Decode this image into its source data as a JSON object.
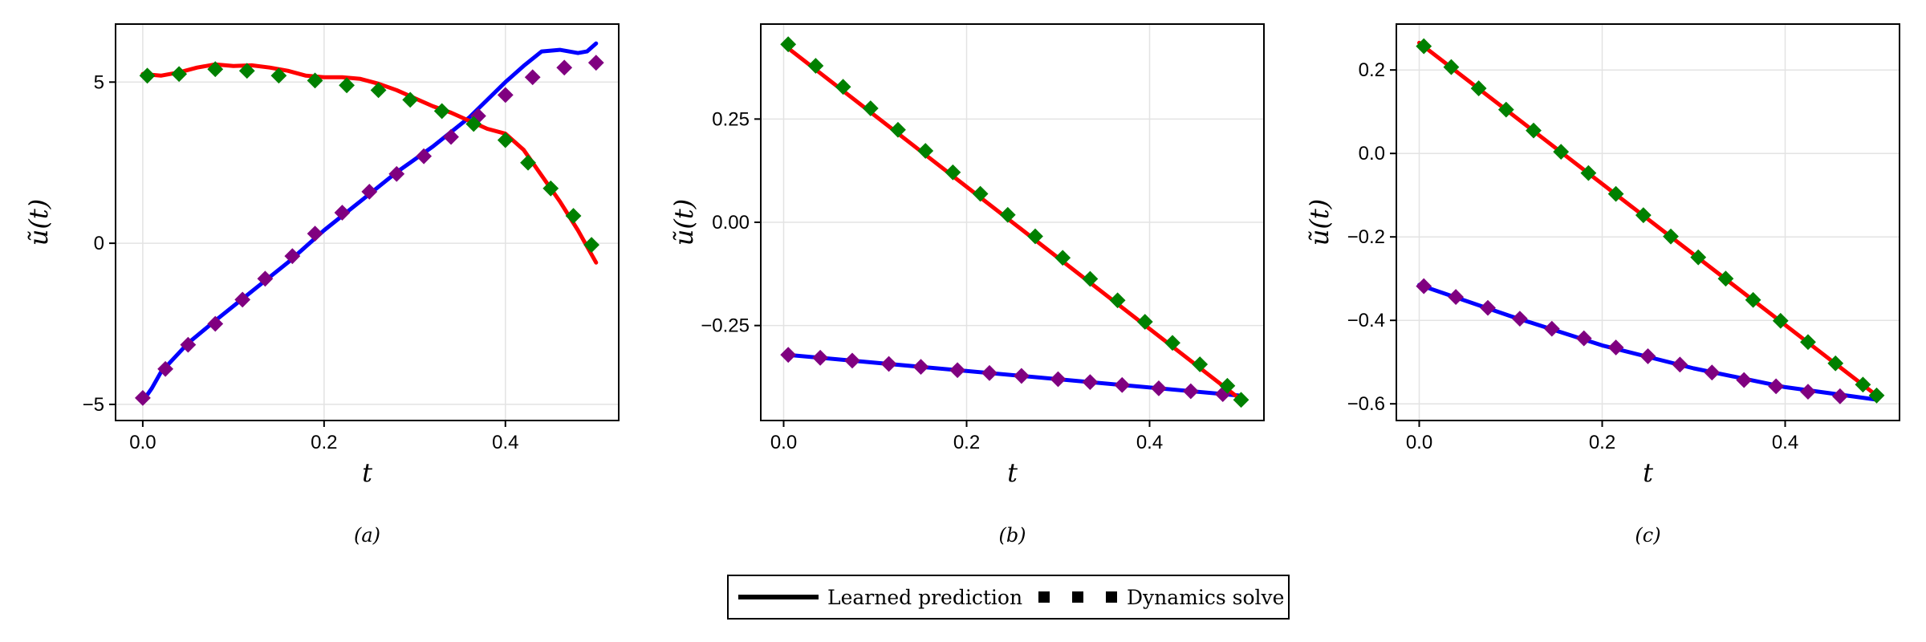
{
  "figure": {
    "legend": {
      "entries": [
        {
          "label": "Learned prediction",
          "style": "line"
        },
        {
          "label": "Dynamics solve",
          "style": "dots"
        }
      ],
      "placement": "bottom-center"
    }
  },
  "chart_data": [
    {
      "type": "line",
      "panel_label": "(a)",
      "xlabel": "t",
      "ylabel": "ũ(t)",
      "xlim": [
        -0.03,
        0.525
      ],
      "ylim": [
        -5.5,
        6.8
      ],
      "xticks": [
        0.0,
        0.2,
        0.4
      ],
      "xtick_labels": [
        "0.0",
        "0.2",
        "0.4"
      ],
      "yticks": [
        -5,
        0,
        5
      ],
      "ytick_labels": [
        "−5",
        "0",
        "5"
      ],
      "grid": true,
      "series": [
        {
          "kind": "line",
          "color": "#0000ff",
          "x": [
            0.0,
            0.01,
            0.02,
            0.05,
            0.08,
            0.12,
            0.16,
            0.2,
            0.24,
            0.28,
            0.32,
            0.36,
            0.4,
            0.42,
            0.44,
            0.46,
            0.48,
            0.49,
            0.5
          ],
          "y": [
            -4.9,
            -4.5,
            -4.0,
            -3.1,
            -2.4,
            -1.5,
            -0.6,
            0.4,
            1.3,
            2.2,
            3.0,
            3.9,
            5.0,
            5.5,
            5.95,
            6.0,
            5.9,
            5.95,
            6.2
          ]
        },
        {
          "kind": "line",
          "color": "#ff0000",
          "x": [
            0.0,
            0.02,
            0.04,
            0.06,
            0.08,
            0.1,
            0.12,
            0.14,
            0.16,
            0.18,
            0.2,
            0.22,
            0.24,
            0.26,
            0.28,
            0.3,
            0.32,
            0.34,
            0.36,
            0.38,
            0.4,
            0.42,
            0.44,
            0.46,
            0.48,
            0.5
          ],
          "y": [
            5.25,
            5.2,
            5.3,
            5.45,
            5.55,
            5.5,
            5.52,
            5.45,
            5.35,
            5.2,
            5.15,
            5.15,
            5.1,
            4.95,
            4.75,
            4.5,
            4.25,
            4.05,
            3.8,
            3.55,
            3.4,
            2.9,
            2.1,
            1.3,
            0.4,
            -0.6
          ]
        },
        {
          "kind": "dots",
          "color": "#800080",
          "x": [
            0.0,
            0.025,
            0.05,
            0.08,
            0.11,
            0.135,
            0.165,
            0.19,
            0.22,
            0.25,
            0.28,
            0.31,
            0.34,
            0.37,
            0.4,
            0.43,
            0.465,
            0.5
          ],
          "y": [
            -4.8,
            -3.9,
            -3.15,
            -2.5,
            -1.75,
            -1.1,
            -0.4,
            0.3,
            0.95,
            1.6,
            2.15,
            2.7,
            3.3,
            3.95,
            4.6,
            5.15,
            5.45,
            5.6
          ]
        },
        {
          "kind": "dots",
          "color": "#008000",
          "x": [
            0.005,
            0.04,
            0.08,
            0.115,
            0.15,
            0.19,
            0.225,
            0.26,
            0.295,
            0.33,
            0.365,
            0.4,
            0.425,
            0.45,
            0.475,
            0.495
          ],
          "y": [
            5.2,
            5.25,
            5.4,
            5.35,
            5.2,
            5.05,
            4.9,
            4.75,
            4.45,
            4.1,
            3.7,
            3.2,
            2.5,
            1.7,
            0.85,
            -0.05
          ]
        }
      ]
    },
    {
      "type": "line",
      "panel_label": "(b)",
      "xlabel": "t",
      "ylabel": "ũ(t)",
      "xlim": [
        -0.025,
        0.525
      ],
      "ylim": [
        -0.48,
        0.48
      ],
      "xticks": [
        0.0,
        0.2,
        0.4
      ],
      "xtick_labels": [
        "0.0",
        "0.2",
        "0.4"
      ],
      "yticks": [
        -0.25,
        0.0,
        0.25
      ],
      "ytick_labels": [
        "−0.25",
        "0.00",
        "0.25"
      ],
      "grid": true,
      "series": [
        {
          "kind": "line",
          "color": "#0000ff",
          "x": [
            0.0,
            0.5
          ],
          "y": [
            -0.32,
            -0.42
          ]
        },
        {
          "kind": "line",
          "color": "#ff0000",
          "x": [
            0.0,
            0.5
          ],
          "y": [
            0.43,
            -0.43
          ]
        },
        {
          "kind": "dots",
          "color": "#800080",
          "x": [
            0.005,
            0.04,
            0.075,
            0.115,
            0.15,
            0.19,
            0.225,
            0.26,
            0.3,
            0.335,
            0.37,
            0.41,
            0.445,
            0.48
          ],
          "y": [
            -0.321,
            -0.328,
            -0.335,
            -0.343,
            -0.35,
            -0.358,
            -0.365,
            -0.372,
            -0.38,
            -0.387,
            -0.394,
            -0.402,
            -0.409,
            -0.416
          ]
        },
        {
          "kind": "dots",
          "color": "#008000",
          "x": [
            0.005,
            0.035,
            0.065,
            0.095,
            0.125,
            0.155,
            0.185,
            0.215,
            0.245,
            0.275,
            0.305,
            0.335,
            0.365,
            0.395,
            0.425,
            0.455,
            0.485,
            0.5
          ],
          "y": [
            0.431,
            0.379,
            0.328,
            0.276,
            0.224,
            0.173,
            0.121,
            0.069,
            0.018,
            -0.034,
            -0.086,
            -0.137,
            -0.189,
            -0.241,
            -0.292,
            -0.344,
            -0.396,
            -0.43
          ]
        }
      ]
    },
    {
      "type": "line",
      "panel_label": "(c)",
      "xlabel": "t",
      "ylabel": "ũ(t)",
      "xlim": [
        -0.025,
        0.525
      ],
      "ylim": [
        -0.64,
        0.31
      ],
      "xticks": [
        0.0,
        0.2,
        0.4
      ],
      "xtick_labels": [
        "0.0",
        "0.2",
        "0.4"
      ],
      "yticks": [
        -0.6,
        -0.4,
        -0.2,
        0.0,
        0.2
      ],
      "ytick_labels": [
        "−0.6",
        "−0.4",
        "−0.2",
        "0.0",
        "0.2"
      ],
      "grid": true,
      "series": [
        {
          "kind": "line",
          "color": "#0000ff",
          "x": [
            0.0,
            0.1,
            0.2,
            0.3,
            0.4,
            0.5
          ],
          "y": [
            -0.315,
            -0.39,
            -0.46,
            -0.515,
            -0.56,
            -0.59
          ]
        },
        {
          "kind": "line",
          "color": "#ff0000",
          "x": [
            0.0,
            0.5
          ],
          "y": [
            0.265,
            -0.58
          ]
        },
        {
          "kind": "dots",
          "color": "#800080",
          "x": [
            0.005,
            0.04,
            0.075,
            0.11,
            0.145,
            0.18,
            0.215,
            0.25,
            0.285,
            0.32,
            0.355,
            0.39,
            0.425,
            0.46
          ],
          "y": [
            -0.318,
            -0.344,
            -0.37,
            -0.396,
            -0.42,
            -0.443,
            -0.465,
            -0.486,
            -0.506,
            -0.525,
            -0.543,
            -0.558,
            -0.571,
            -0.582
          ]
        },
        {
          "kind": "dots",
          "color": "#008000",
          "x": [
            0.005,
            0.035,
            0.065,
            0.095,
            0.125,
            0.155,
            0.185,
            0.215,
            0.245,
            0.275,
            0.305,
            0.335,
            0.365,
            0.395,
            0.425,
            0.455,
            0.485,
            0.5
          ],
          "y": [
            0.257,
            0.207,
            0.156,
            0.105,
            0.055,
            0.004,
            -0.047,
            -0.097,
            -0.148,
            -0.199,
            -0.249,
            -0.3,
            -0.351,
            -0.401,
            -0.452,
            -0.503,
            -0.554,
            -0.58
          ]
        }
      ]
    }
  ]
}
